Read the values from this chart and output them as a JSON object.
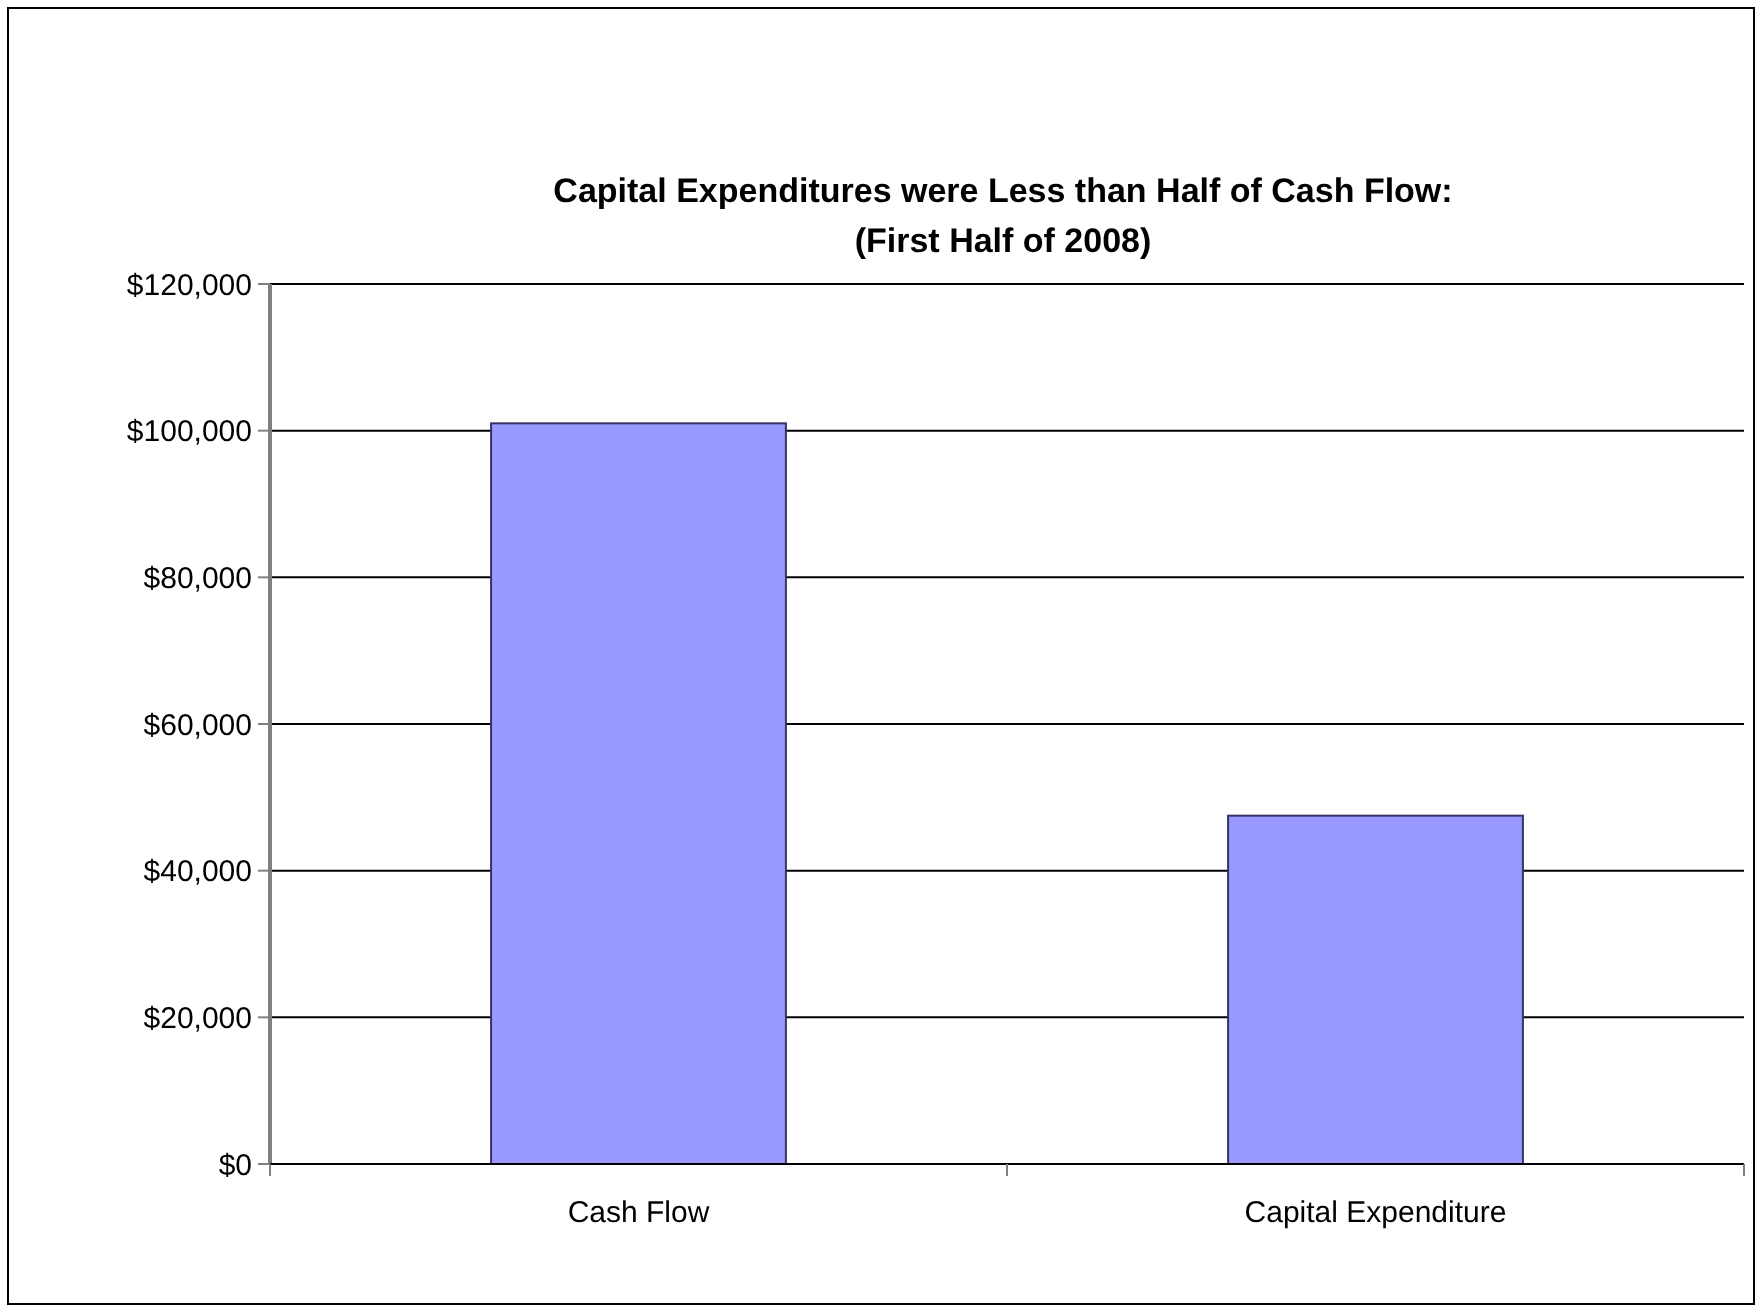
{
  "chart_data": {
    "type": "bar",
    "title": "Capital Expenditures were Less than Half of Cash Flow:\n(First Half of 2008)",
    "categories": [
      "Cash Flow",
      "Capital Expenditure"
    ],
    "values": [
      101000,
      47500
    ],
    "color": "#9999ff",
    "ylim": [
      0,
      120000
    ],
    "yticks": [
      {
        "value": 0,
        "label": "$0"
      },
      {
        "value": 20000,
        "label": "$20,000"
      },
      {
        "value": 40000,
        "label": "$40,000"
      },
      {
        "value": 60000,
        "label": "$60,000"
      },
      {
        "value": 80000,
        "label": "$80,000"
      },
      {
        "value": 100000,
        "label": "$100,000"
      },
      {
        "value": 120000,
        "label": "$120,000"
      }
    ],
    "grid": "y"
  }
}
